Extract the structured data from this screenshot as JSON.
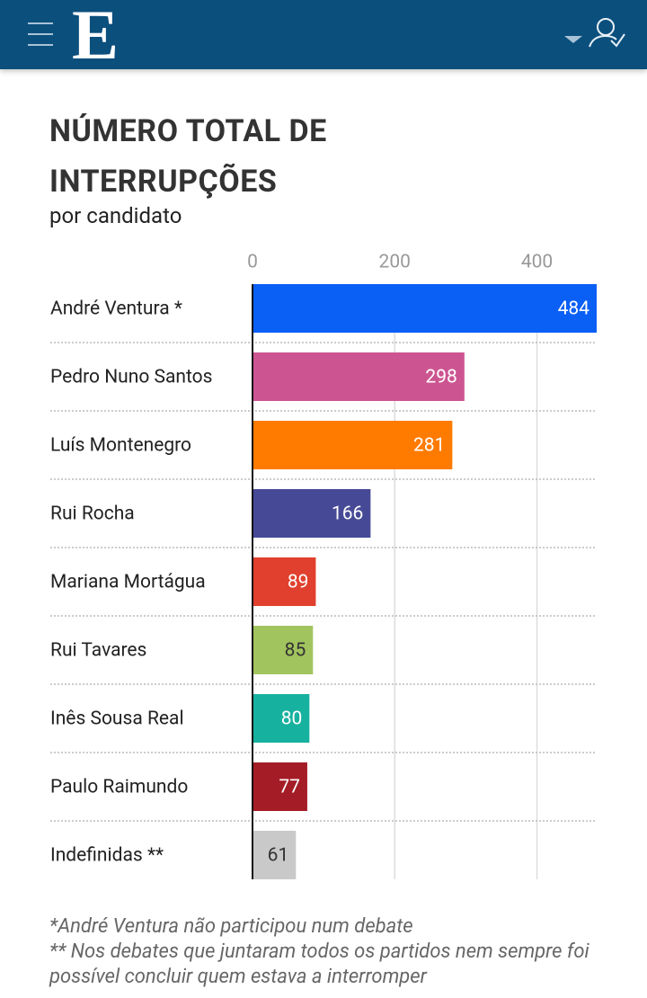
{
  "header": {
    "logo": "E"
  },
  "chart_data": {
    "type": "bar",
    "title": "NÚMERO TOTAL DE INTERRUPÇÕES",
    "subtitle": "por candidato",
    "categories": [
      "André Ventura *",
      "Pedro Nuno Santos",
      "Luís Montenegro",
      "Rui Rocha",
      "Mariana Mortágua",
      "Rui Tavares",
      "Inês Sousa Real",
      "Paulo Raimundo",
      "Indefinidas **"
    ],
    "values": [
      484,
      298,
      281,
      166,
      89,
      85,
      80,
      77,
      61
    ],
    "colors": [
      "#0a5ff5",
      "#cc5591",
      "#ff7b00",
      "#464a96",
      "#e0402d",
      "#a2c45e",
      "#17b19f",
      "#a41c26",
      "#c9c9c9"
    ],
    "xlim": [
      0,
      484
    ],
    "xticks": [
      0,
      200,
      400
    ],
    "grid": true,
    "notes": [
      "*André Ventura não participou num debate",
      "** Nos debates que juntaram todos os partidos nem sempre foi possível concluir quem estava a interromper"
    ]
  }
}
